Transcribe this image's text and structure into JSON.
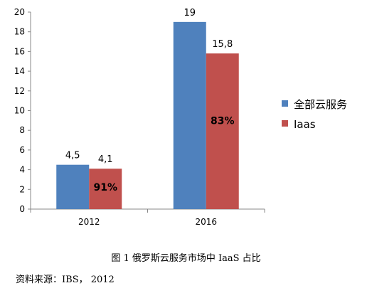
{
  "chart_data": {
    "type": "bar",
    "categories": [
      "2012",
      "2016"
    ],
    "series": [
      {
        "name": "全部云服务",
        "values": [
          4.5,
          19
        ],
        "labels": [
          "4,5",
          "19"
        ],
        "color": "#4F81BD"
      },
      {
        "name": "Iaas",
        "values": [
          4.1,
          15.8
        ],
        "labels": [
          "4,1",
          "15,8"
        ],
        "color": "#C0504D"
      }
    ],
    "share_labels": [
      "91%",
      "83%"
    ],
    "ylim": [
      0,
      20
    ],
    "yticks": [
      0,
      2,
      4,
      6,
      8,
      10,
      12,
      14,
      16,
      18,
      20
    ],
    "grid": false,
    "legend": "right"
  },
  "caption": "图 1 俄罗斯云服务市场中 IaaS 占比",
  "source": "资料来源：IBS， 2012"
}
